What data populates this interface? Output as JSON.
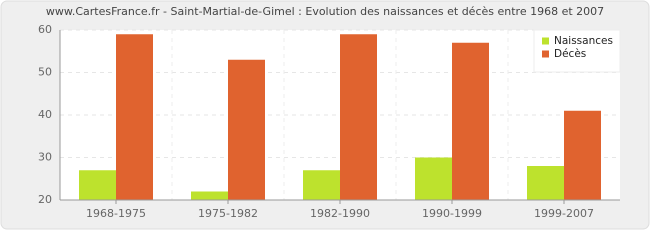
{
  "chart_data": {
    "type": "bar",
    "title": "www.CartesFrance.fr - Saint-Martial-de-Gimel : Evolution des naissances et décès entre 1968 et 2007",
    "categories": [
      "1968-1975",
      "1975-1982",
      "1982-1990",
      "1990-1999",
      "1999-2007"
    ],
    "series": [
      {
        "name": "Naissances",
        "color": "#bde22d",
        "values": [
          27,
          22,
          27,
          30,
          28
        ]
      },
      {
        "name": "Décès",
        "color": "#e0632f",
        "values": [
          59,
          53,
          59,
          57,
          41
        ]
      }
    ],
    "ylim": [
      20,
      60
    ],
    "yticks": [
      20,
      30,
      40,
      50,
      60
    ],
    "grid": true,
    "legend": "top-right"
  }
}
